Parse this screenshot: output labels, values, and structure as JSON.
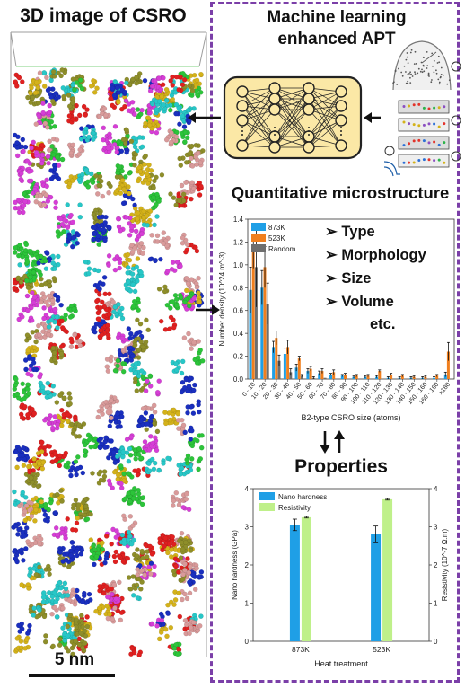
{
  "left_panel": {
    "title": "3D image of CSRO",
    "scale_bar_label": "5 nm",
    "colors": [
      "#d4b21a",
      "#e02020",
      "#1a2fbf",
      "#2cc43a",
      "#d63ed6",
      "#d99a9a",
      "#27c7c7",
      "#8e8e2a"
    ]
  },
  "ml_panel": {
    "title_line1": "Machine learning",
    "title_line2": "enhanced APT",
    "box_color": "#fbe8a6",
    "node_color": "#fbe8a6"
  },
  "quant": {
    "title": "Quantitative microstructure",
    "bullets": [
      "Type",
      "Morphology",
      "Size",
      "Volume"
    ],
    "bullet_tail": "etc."
  },
  "properties_title": "Properties",
  "chart_data": [
    {
      "type": "bar",
      "ylabel": "Number density (10^24 m^-3)",
      "xlabel": "B2-type CSRO size (atoms)",
      "ylim": [
        0,
        1.4
      ],
      "yticks": [
        "0.0",
        "0.2",
        "0.4",
        "0.6",
        "0.8",
        "1.0",
        "1.2",
        "1.4"
      ],
      "categories": [
        "0 - 10",
        "10 - 20",
        "20 - 30",
        "30 - 40",
        "40 - 50",
        "50 - 60",
        "60 - 70",
        "70 - 80",
        "80 - 90",
        "90 - 100",
        "100 - 110",
        "110 - 120",
        "120 - 130",
        "130 - 140",
        "140 - 150",
        "150 - 160",
        "160 - 180",
        ">180"
      ],
      "legend_position": "top-left",
      "series": [
        {
          "name": "873K",
          "color": "#1f9fe6",
          "values": [
            0.78,
            0.8,
            0.28,
            0.22,
            0.1,
            0.07,
            0.05,
            0.04,
            0.03,
            0.02,
            0.02,
            0.02,
            0.01,
            0.01,
            0.01,
            0.01,
            0.01,
            0.04
          ],
          "errors": [
            0.2,
            0.15,
            0.05,
            0.05,
            0.03,
            0.02,
            0.02,
            0.01,
            0.01,
            0.01,
            0.01,
            0.01,
            0.01,
            0.01,
            0.01,
            0.01,
            0.01,
            0.02
          ]
        },
        {
          "name": "523K",
          "color": "#f07f1e",
          "values": [
            1.12,
            0.98,
            0.36,
            0.28,
            0.18,
            0.09,
            0.07,
            0.06,
            0.04,
            0.03,
            0.03,
            0.07,
            0.04,
            0.03,
            0.02,
            0.02,
            0.03,
            0.24
          ],
          "errors": [
            0.15,
            0.18,
            0.06,
            0.06,
            0.02,
            0.02,
            0.02,
            0.02,
            0.01,
            0.01,
            0.01,
            0.01,
            0.01,
            0.01,
            0.01,
            0.01,
            0.01,
            0.08
          ]
        },
        {
          "name": "Random",
          "color": "#6e6e6e",
          "values": [
            0.98,
            0.66,
            0.16,
            0.06,
            0.03,
            0.01,
            0.01,
            0.0,
            0.0,
            0.0,
            0.0,
            0.0,
            0.0,
            0.0,
            0.0,
            0.0,
            0.0,
            0.0
          ],
          "errors": [
            0.35,
            0.18,
            0.05,
            0.03,
            0.01,
            0.01,
            0.0,
            0.0,
            0.0,
            0.0,
            0.0,
            0.0,
            0.0,
            0.0,
            0.0,
            0.0,
            0.0,
            0.0
          ]
        }
      ]
    },
    {
      "type": "bar",
      "ylabel": "Nano hardness (GPa)",
      "ylabel_right": "Resistivity (10^-7 Ω.m)",
      "xlabel": "Heat treatment",
      "ylim": [
        0,
        4
      ],
      "yticks": [
        "0",
        "1",
        "2",
        "3",
        "4"
      ],
      "categories": [
        "873K",
        "523K"
      ],
      "legend_position": "top-left",
      "series": [
        {
          "name": "Nano hardness",
          "color": "#1f9fe6",
          "values": [
            3.05,
            2.8
          ],
          "errors": [
            0.15,
            0.22
          ]
        },
        {
          "name": "Resistivity",
          "color": "#bff08a",
          "values": [
            3.25,
            3.72
          ],
          "errors": [
            0.02,
            0.02
          ]
        }
      ]
    }
  ]
}
